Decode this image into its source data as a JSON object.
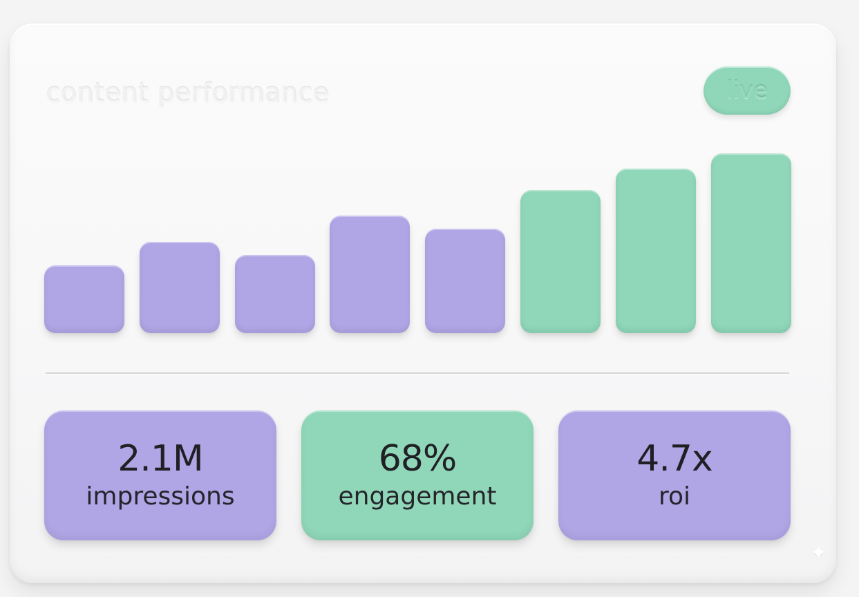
{
  "card": {
    "title": "content performance",
    "status_badge": "live"
  },
  "colors": {
    "purple": "#b0a6e6",
    "green": "#8fd7b8",
    "card": "#f8f8f9"
  },
  "chart_data": {
    "type": "bar",
    "categories": [
      "",
      "",
      "",
      "",
      "",
      "",
      "",
      ""
    ],
    "values": [
      26,
      35,
      30,
      45,
      40,
      55,
      63,
      69
    ],
    "bar_colors": [
      "purple",
      "purple",
      "purple",
      "purple",
      "purple",
      "green",
      "green",
      "green"
    ],
    "title": "content performance",
    "xlabel": "",
    "ylabel": "",
    "ylim": [
      0,
      75
    ],
    "grid": false
  },
  "stats": [
    {
      "value": "2.1M",
      "label": "impressions",
      "color": "purple"
    },
    {
      "value": "68%",
      "label": "engagement",
      "color": "green"
    },
    {
      "value": "4.7x",
      "label": "roi",
      "color": "purple"
    }
  ]
}
